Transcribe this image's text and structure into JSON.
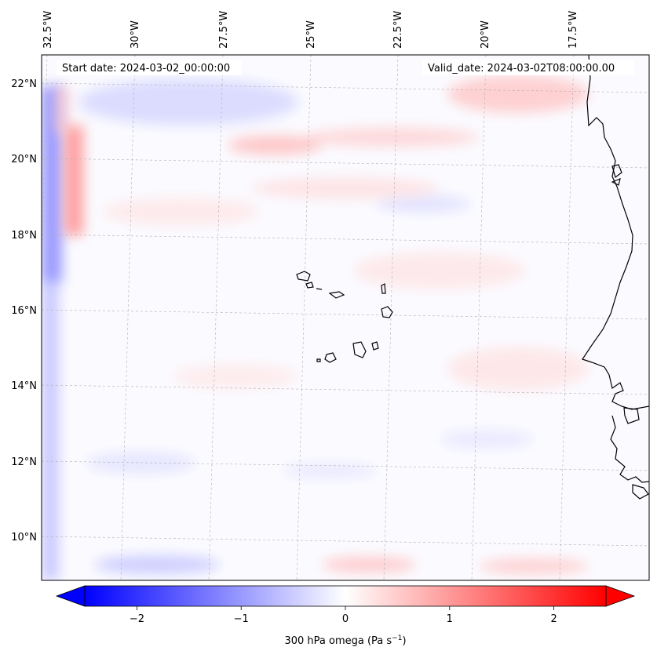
{
  "header": {
    "start_date": "Start date: 2024-03-02_00:00:00",
    "valid_date": "Valid_date: 2024-03-02T08:00:00.00"
  },
  "map": {
    "lon_labels": [
      "32.5°W",
      "30°W",
      "27.5°W",
      "25°W",
      "22.5°W",
      "20°W",
      "17.5°W"
    ],
    "lat_labels": [
      "22°N",
      "20°N",
      "18°N",
      "16°N",
      "14°N",
      "12°N",
      "10°N"
    ],
    "field_colors": {
      "negative": "#6b6bff",
      "positive": "#ff6b6b",
      "neutral": "#ffffff",
      "coastline": "#000000",
      "gridline": "#b0b0b0"
    }
  },
  "colorbar": {
    "label": "300 hPa omega (Pa s",
    "label_exp": "−1",
    "label_close": ")",
    "ticks": [
      "−2",
      "−1",
      "0",
      "1",
      "2"
    ],
    "tick_values": [
      -2,
      -1,
      0,
      1,
      2
    ],
    "range": [
      -2.5,
      2.5
    ],
    "cmap": [
      "#0000ff",
      "#ffffff",
      "#ff0000"
    ]
  }
}
